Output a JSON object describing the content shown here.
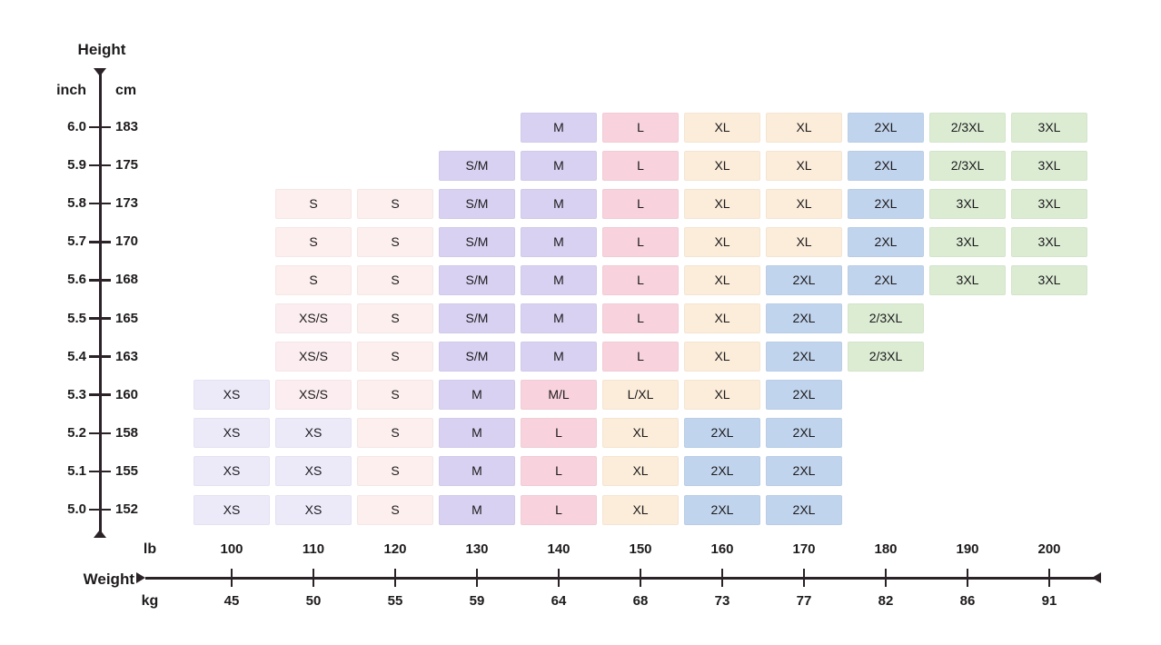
{
  "height_axis": {
    "title": "Height",
    "unit_primary": "inch",
    "unit_secondary": "cm"
  },
  "weight_axis": {
    "title": "Weight",
    "unit_primary": "lb",
    "unit_secondary": "kg"
  },
  "size_colors": {
    "XS": "#ECEAF9",
    "XS/S": "#FCEEF0",
    "S": "#FCEFEE",
    "S/M": "#D8D1F1",
    "M": "#D8D1F1",
    "M/L": "#F8D3DD",
    "L": "#F8D3DD",
    "L/XL": "#FCEDDA",
    "XL": "#FCEDDA",
    "2XL": "#C1D4ED",
    "2/3XL": "#DBECD3",
    "3XL": "#DBECD3"
  },
  "chart_data": {
    "type": "heatmap",
    "xlabel": "Weight",
    "ylabel": "Height",
    "x_units": {
      "primary": "lb",
      "secondary": "kg"
    },
    "y_units": {
      "primary": "inch",
      "secondary": "cm"
    },
    "x_lb": [
      "100",
      "110",
      "120",
      "130",
      "140",
      "150",
      "160",
      "170",
      "180",
      "190",
      "200"
    ],
    "x_kg": [
      "45",
      "50",
      "55",
      "59",
      "64",
      "68",
      "73",
      "77",
      "82",
      "86",
      "91"
    ],
    "y_inch": [
      "6.0",
      "5.9",
      "5.8",
      "5.7",
      "5.6",
      "5.5",
      "5.4",
      "5.3",
      "5.2",
      "5.1",
      "5.0"
    ],
    "y_cm": [
      "183",
      "175",
      "173",
      "170",
      "168",
      "165",
      "163",
      "160",
      "158",
      "155",
      "152"
    ],
    "matrix": [
      [
        null,
        null,
        null,
        null,
        "M",
        "L",
        "XL",
        "XL",
        "2XL",
        "2/3XL",
        "3XL"
      ],
      [
        null,
        null,
        null,
        "S/M",
        "M",
        "L",
        "XL",
        "XL",
        "2XL",
        "2/3XL",
        "3XL"
      ],
      [
        null,
        "S",
        "S",
        "S/M",
        "M",
        "L",
        "XL",
        "XL",
        "2XL",
        "3XL",
        "3XL"
      ],
      [
        null,
        "S",
        "S",
        "S/M",
        "M",
        "L",
        "XL",
        "XL",
        "2XL",
        "3XL",
        "3XL"
      ],
      [
        null,
        "S",
        "S",
        "S/M",
        "M",
        "L",
        "XL",
        "2XL",
        "2XL",
        "3XL",
        "3XL"
      ],
      [
        null,
        "XS/S",
        "S",
        "S/M",
        "M",
        "L",
        "XL",
        "2XL",
        "2/3XL",
        null,
        null
      ],
      [
        null,
        "XS/S",
        "S",
        "S/M",
        "M",
        "L",
        "XL",
        "2XL",
        "2/3XL",
        null,
        null
      ],
      [
        "XS",
        "XS/S",
        "S",
        "M",
        "M/L",
        "L/XL",
        "XL",
        "2XL",
        null,
        null,
        null
      ],
      [
        "XS",
        "XS",
        "S",
        "M",
        "L",
        "XL",
        "2XL",
        "2XL",
        null,
        null,
        null
      ],
      [
        "XS",
        "XS",
        "S",
        "M",
        "L",
        "XL",
        "2XL",
        "2XL",
        null,
        null,
        null
      ],
      [
        "XS",
        "XS",
        "S",
        "M",
        "L",
        "XL",
        "2XL",
        "2XL",
        null,
        null,
        null
      ]
    ]
  }
}
